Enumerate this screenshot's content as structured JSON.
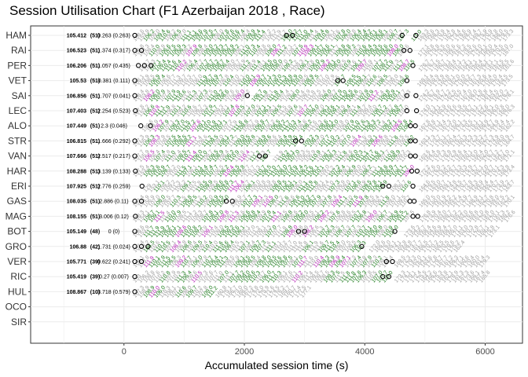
{
  "chart_data": {
    "type": "scatter",
    "title": "Session Utilisation Chart (F1 Azerbaijan 2018 , Race)",
    "xlabel": "Accumulated session time (s)",
    "ylabel": "",
    "xlim": [
      -1550,
      6620
    ],
    "xticks": [
      0,
      2000,
      4000,
      6000
    ],
    "grid": true,
    "legend": "none",
    "colors": {
      "normal": "#9e9e9e",
      "personal_best": "#1a7a1a",
      "overall_best": "#b31ab3",
      "stint_marker": "#000000"
    },
    "drivers": [
      "HAM",
      "RAI",
      "PER",
      "VET",
      "SAI",
      "LEC",
      "ALO",
      "STR",
      "VAN",
      "HAR",
      "ERI",
      "GAS",
      "MAG",
      "BOT",
      "GRO",
      "VER",
      "RIC",
      "HUL",
      "OCO",
      "SIR"
    ],
    "rows": [
      {
        "driver": "HAM",
        "best": "105.412",
        "laps": "(51)",
        "gap": "0.263 (0.263)",
        "stints": [
          [
            130,
            4630
          ],
          [
            4750,
            4870
          ]
        ],
        "stops": [
          180,
          2700,
          2800,
          4620,
          4850
        ],
        "first": [
          "108.6",
          "153.9"
        ],
        "end": 4860
      },
      {
        "driver": "RAI",
        "best": "106.523",
        "laps": "(51)",
        "gap": "1.374 (0.317)",
        "stints": [
          [
            130,
            4630
          ]
        ],
        "stops": [
          180,
          290,
          4650,
          4750
        ],
        "first": [
          "106.8",
          "164.3"
        ],
        "end": 4860
      },
      {
        "driver": "PER",
        "best": "106.206",
        "laps": "(51)",
        "gap": "1.057 (0.435)",
        "stints": [
          [
            230,
            4700
          ]
        ],
        "stops": [
          240,
          340,
          450,
          4800
        ],
        "first": [
          "107.7",
          "164.3"
        ],
        "end": 4870
      },
      {
        "driver": "VET",
        "best": "105.53",
        "laps": "(51)",
        "gap": "0.381 (0.111)",
        "stints": [
          [
            130,
            3550
          ],
          [
            3650,
            4600
          ]
        ],
        "stops": [
          180,
          3550,
          3640,
          4700
        ],
        "first": [
          "108.1",
          "153.9"
        ],
        "end": 4850
      },
      {
        "driver": "SAI",
        "best": "106.856",
        "laps": "(51)",
        "gap": "1.707 (0.041)",
        "stints": [
          [
            130,
            2000
          ],
          [
            2100,
            4700
          ]
        ],
        "stops": [
          180,
          2050,
          4700,
          4850
        ],
        "first": [
          "108.4",
          "153.8"
        ],
        "end": 4870
      },
      {
        "driver": "LEC",
        "best": "107.403",
        "laps": "(51)",
        "gap": "2.254 (0.523)",
        "stints": [
          [
            130,
            4650
          ]
        ],
        "stops": [
          190,
          4700,
          4860
        ],
        "first": [
          "107.8",
          "153.2"
        ],
        "end": 4880
      },
      {
        "driver": "ALO",
        "best": "107.449",
        "laps": "(51)",
        "gap": "2.3 (0.046)",
        "stints": [
          [
            280,
            4700
          ]
        ],
        "stops": [
          280,
          440,
          4760,
          4840
        ],
        "first": [
          "199.6",
          "153.9"
        ],
        "end": 4880
      },
      {
        "driver": "STR",
        "best": "106.815",
        "laps": "(51)",
        "gap": "1.666 (0.292)",
        "stints": [
          [
            130,
            2850
          ],
          [
            2950,
            4700
          ]
        ],
        "stops": [
          180,
          2850,
          2950,
          4760,
          4840
        ],
        "first": [
          "107.3",
          "155.9"
        ],
        "end": 4880
      },
      {
        "driver": "VAN",
        "best": "107.666",
        "laps": "(51)",
        "gap": "2.517 (0.217)",
        "stints": [
          [
            130,
            2350
          ],
          [
            2450,
            4700
          ]
        ],
        "stops": [
          180,
          2250,
          2350,
          4760,
          4840
        ],
        "first": [
          "107.7",
          "155.9"
        ],
        "end": 4880
      },
      {
        "driver": "HAR",
        "best": "108.288",
        "laps": "(51)",
        "gap": "3.139 (0.133)",
        "stints": [
          [
            130,
            4700
          ]
        ],
        "stops": [
          190,
          4780,
          4870
        ],
        "first": [
          "107.5",
          "153.4"
        ],
        "end": 4880
      },
      {
        "driver": "ERI",
        "best": "107.925",
        "laps": "(51)",
        "gap": "2.776 (0.259)",
        "stints": [
          [
            300,
            4300
          ],
          [
            4400,
            4700
          ]
        ],
        "stops": [
          300,
          4300,
          4400,
          4800
        ],
        "first": [
          "129",
          "153.1"
        ],
        "end": 4880
      },
      {
        "driver": "GAS",
        "best": "108.035",
        "laps": "(51)",
        "gap": "2.886 (0.11)",
        "stints": [
          [
            130,
            1650
          ],
          [
            1750,
            4700
          ]
        ],
        "stops": [
          180,
          290,
          1700,
          1800,
          4750,
          4820
        ],
        "first": [
          "107.4",
          "154.9"
        ],
        "end": 4880
      },
      {
        "driver": "MAG",
        "best": "108.155",
        "laps": "(51)",
        "gap": "3.006 (0.12)",
        "stints": [
          [
            130,
            4700
          ]
        ],
        "stops": [
          190,
          4800,
          4880
        ],
        "first": [
          "138.3",
          "154.1"
        ],
        "end": 4890
      },
      {
        "driver": "BOT",
        "best": "105.149",
        "laps": "(48)",
        "gap": "0 (0)",
        "stints": [
          [
            130,
            4500
          ]
        ],
        "stops": [
          180,
          2900,
          3000,
          4500
        ],
        "first": [
          "108.6",
          "153.9"
        ],
        "end": 4630
      },
      {
        "driver": "GRO",
        "best": "106.88",
        "laps": "(42)",
        "gap": "1.731 (0.024)",
        "stints": [
          [
            130,
            3950
          ]
        ],
        "stops": [
          180,
          290,
          400,
          3950
        ],
        "first": [
          "107.4",
          "153.2"
        ],
        "end": 4050
      },
      {
        "driver": "VER",
        "best": "105.771",
        "laps": "(39)",
        "gap": "0.622 (0.241)",
        "stints": [
          [
            130,
            4360
          ]
        ],
        "stops": [
          180,
          290,
          4360,
          4460
        ],
        "first": [
          "108.1",
          "153.8"
        ],
        "end": 4470
      },
      {
        "driver": "RIC",
        "best": "105.419",
        "laps": "(39)",
        "gap": "0.27 (0.007)",
        "stints": [
          [
            130,
            4360
          ]
        ],
        "stops": [
          180,
          4300,
          4400
        ],
        "first": [
          "153",
          "106.2"
        ],
        "end": 4470
      },
      {
        "driver": "HUL",
        "best": "108.867",
        "laps": "(10)",
        "gap": "3.718 (0.579)",
        "stints": [
          [
            130,
            1500
          ]
        ],
        "stops": [
          180
        ],
        "first": [
          "107.3",
          "158.9"
        ],
        "end": 1500
      },
      {
        "driver": "OCO",
        "best": "",
        "laps": "",
        "gap": "",
        "stints": [],
        "stops": [],
        "first": [],
        "end": 0
      },
      {
        "driver": "SIR",
        "best": "",
        "laps": "",
        "gap": "",
        "stints": [],
        "stops": [],
        "first": [],
        "end": 0
      }
    ]
  }
}
